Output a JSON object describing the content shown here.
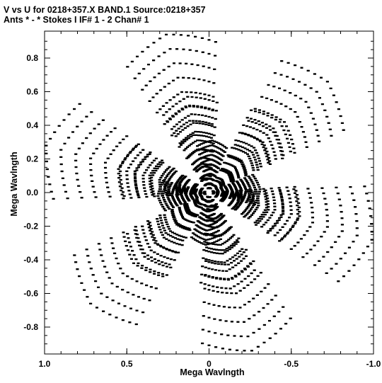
{
  "chart_data": {
    "type": "scatter",
    "title": "V vs U for 0218+357.X BAND.1   Source:0218+357",
    "subtitle": "Ants * - *     Stokes I  IF# 1 - 2  Chan# 1",
    "xlabel": "Mega Wavlngth",
    "ylabel": "Mega Wavlngth",
    "xlim": [
      1.0,
      -1.0
    ],
    "ylim": [
      -0.96,
      0.96
    ],
    "x_ticks": [
      "1.0",
      "0.5",
      "0",
      "-0.5",
      "-1.0"
    ],
    "y_ticks": [
      "0.8",
      "0.6",
      "0.4",
      "0.2",
      "0.0",
      "-0.2",
      "-0.4",
      "-0.6",
      "-0.8"
    ],
    "grid": false,
    "legend": "none",
    "baselines": [
      {
        "u": 0.26,
        "v": 0.94
      },
      {
        "u": -0.72,
        "v": 0.66
      },
      {
        "u": -0.99,
        "v": -0.28
      },
      {
        "u": -0.26,
        "v": -0.94
      },
      {
        "u": 0.72,
        "v": -0.66
      },
      {
        "u": 0.99,
        "v": 0.28
      },
      {
        "u": 0.13,
        "v": 0.57
      },
      {
        "u": -0.43,
        "v": 0.42
      },
      {
        "u": -0.55,
        "v": -0.14
      },
      {
        "u": -0.13,
        "v": -0.57
      },
      {
        "u": 0.43,
        "v": -0.42
      },
      {
        "u": 0.55,
        "v": 0.14
      },
      {
        "u": -0.02,
        "v": 0.31
      },
      {
        "u": -0.31,
        "v": 0.02
      },
      {
        "u": 0.02,
        "v": -0.31
      },
      {
        "u": 0.31,
        "v": -0.02
      }
    ]
  }
}
